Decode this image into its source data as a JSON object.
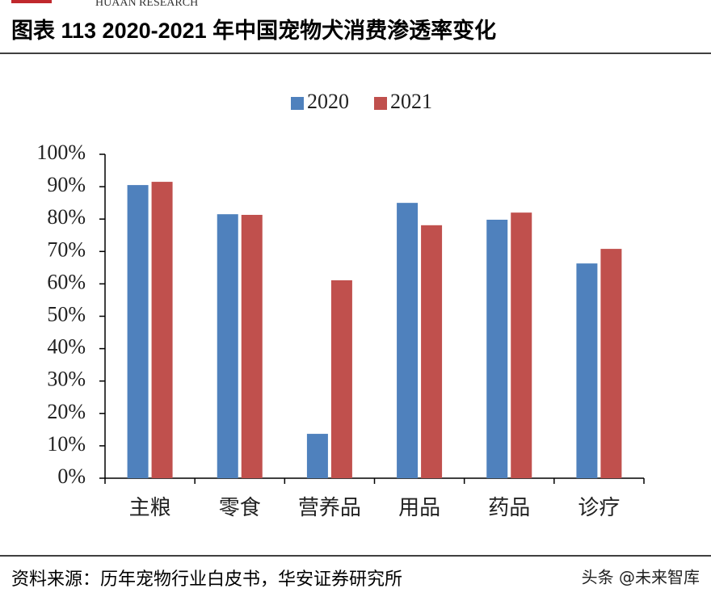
{
  "header": {
    "brand": "HUAAN RESEARCH"
  },
  "chart_data": {
    "type": "bar",
    "title": "图表 113 2020-2021 年中国宠物犬消费渗透率变化",
    "categories": [
      "主粮",
      "零食",
      "营养品",
      "用品",
      "药品",
      "诊疗"
    ],
    "series": [
      {
        "name": "2020",
        "color": "#4f81bd",
        "values": [
          90.5,
          81.5,
          13.7,
          85,
          79.8,
          66.3
        ]
      },
      {
        "name": "2021",
        "color": "#c0504d",
        "values": [
          91.5,
          81.3,
          61.1,
          78.1,
          82,
          70.8
        ]
      }
    ],
    "ylim": [
      0,
      100
    ],
    "yticks": [
      {
        "value": 0,
        "label": "0%"
      },
      {
        "value": 10,
        "label": "10%"
      },
      {
        "value": 20,
        "label": "20%"
      },
      {
        "value": 30,
        "label": "30%"
      },
      {
        "value": 40,
        "label": "40%"
      },
      {
        "value": 50,
        "label": "50%"
      },
      {
        "value": 60,
        "label": "60%"
      },
      {
        "value": 70,
        "label": "70%"
      },
      {
        "value": 80,
        "label": "80%"
      },
      {
        "value": 90,
        "label": "90%"
      },
      {
        "value": 100,
        "label": "100%"
      }
    ],
    "legend": "top",
    "grid": false
  },
  "footer": {
    "source": "资料来源：历年宠物行业白皮书，华安证券研究所",
    "watermark": "头条 @未来智库"
  }
}
